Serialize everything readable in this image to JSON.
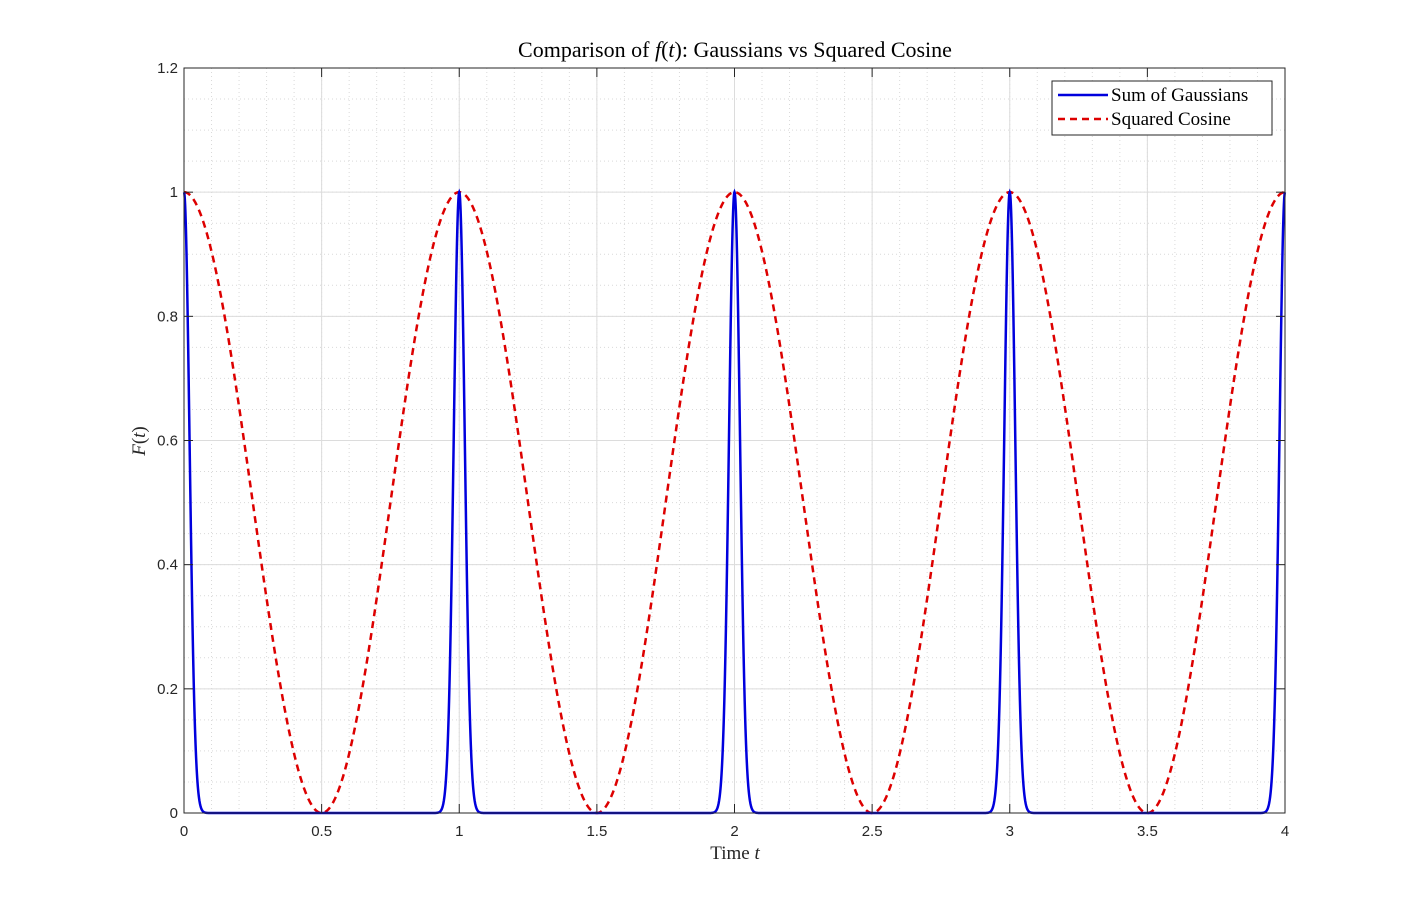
{
  "chart_data": {
    "type": "line",
    "title_parts": [
      "Comparison of ",
      "f",
      "(",
      "t",
      "): Gaussians vs Squared Cosine"
    ],
    "xlabel_parts": [
      "Time ",
      "t"
    ],
    "ylabel_parts": [
      "F",
      "(",
      "t",
      ")"
    ],
    "xlim": [
      0,
      4
    ],
    "ylim": [
      0,
      1.2
    ],
    "xticks": [
      0,
      0.5,
      1,
      1.5,
      2,
      2.5,
      3,
      3.5,
      4
    ],
    "xtick_labels": [
      "0",
      "0.5",
      "1",
      "1.5",
      "2",
      "2.5",
      "3",
      "3.5",
      "4"
    ],
    "yticks": [
      0,
      0.2,
      0.4,
      0.6,
      0.8,
      1,
      1.2
    ],
    "ytick_labels": [
      "0",
      "0.2",
      "0.4",
      "0.6",
      "0.8",
      "1",
      "1.2"
    ],
    "grid": true,
    "minor_grid": true,
    "legend_position": "top-right",
    "series": [
      {
        "name": "Sum of Gaussians",
        "color": "#0000dd",
        "style": "solid",
        "function": "sum_k exp(-(t-k)^2 / (2*sigma^2)), k = 0..4",
        "centers": [
          0,
          1,
          2,
          3,
          4
        ],
        "peak": 1,
        "sigma": 0.02
      },
      {
        "name": "Squared Cosine",
        "color": "#dd0000",
        "style": "dashed",
        "function": "cos^2(pi*t)",
        "peak": 1,
        "zeros": [
          0.5,
          1.5,
          2.5,
          3.5
        ]
      }
    ]
  }
}
